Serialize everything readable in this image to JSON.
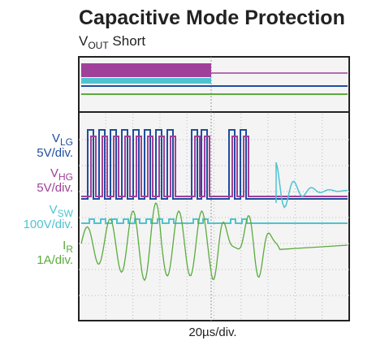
{
  "header": {
    "title": "Capacitive Mode Protection",
    "subtitle": {
      "main": "V",
      "sub": "OUT",
      "rest": " Short"
    }
  },
  "traces": [
    {
      "name": {
        "main": "V",
        "sub": "LG"
      },
      "scale": "5V/div."
    },
    {
      "name": {
        "main": "V",
        "sub": "HG"
      },
      "scale": "5V/div."
    },
    {
      "name": {
        "main": "V",
        "sub": "SW"
      },
      "scale": "100V/div."
    },
    {
      "name": {
        "main": "I",
        "sub": "R"
      },
      "scale": "1A/div."
    }
  ],
  "timebase": "20µs/div."
}
